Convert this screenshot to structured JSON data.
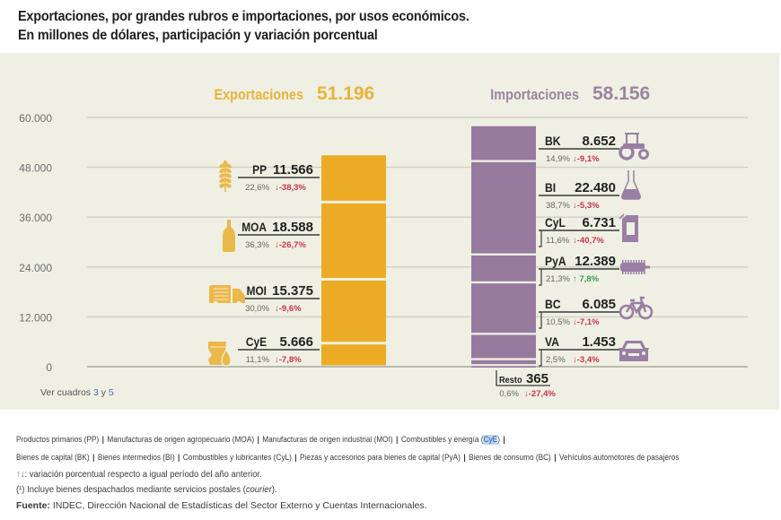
{
  "header": {
    "title_line1": "Exportaciones, por grandes rubros e importaciones, por usos económicos.",
    "title_line2": "En millones de dólares, participación y variación porcentual"
  },
  "colors": {
    "exports": "#ebab25",
    "imports": "#977b9f",
    "icon_exports": "#ebb84a",
    "icon_imports": "#9a7ea3",
    "up": "#3c9a5a",
    "down": "#c9344a",
    "export_title": "#e8b33a",
    "import_title": "#9b84a2",
    "panel_bg": "#eff0e3"
  },
  "chart_data": {
    "type": "bar",
    "stacked": true,
    "ylim": [
      0,
      60000
    ],
    "yticks": [
      0,
      12000,
      24000,
      36000,
      48000,
      60000
    ],
    "ytick_labels": [
      "0",
      "12.000",
      "24.000",
      "36.000",
      "48.000",
      "60.000"
    ],
    "grid": true,
    "note": "Ver cuadros",
    "note_refs": [
      "3",
      "5"
    ],
    "note_joiner": "y",
    "categories": [
      "Exportaciones",
      "Importaciones"
    ],
    "totals": [
      51196,
      58156
    ],
    "total_labels": [
      "51.196",
      "58.156"
    ],
    "series": [
      {
        "name": "Exportaciones",
        "segments_bottom_to_top": [
          {
            "code": "CyE",
            "value": 5666,
            "value_label": "5.666",
            "share": "11,1%",
            "change": "-7,8%",
            "direction": "down",
            "icon": "oil-barrel-drop-icon"
          },
          {
            "code": "MOI",
            "value": 15375,
            "value_label": "15.375",
            "share": "30,0%",
            "change": "-9,6%",
            "direction": "down",
            "icon": "truck-icon"
          },
          {
            "code": "MOA",
            "value": 18588,
            "value_label": "18.588",
            "share": "36,3%",
            "change": "-26,7%",
            "direction": "down",
            "icon": "bottle-icon"
          },
          {
            "code": "PP",
            "value": 11566,
            "value_label": "11.566",
            "share": "22,6%",
            "change": "-38,3%",
            "direction": "down",
            "icon": "wheat-icon"
          }
        ]
      },
      {
        "name": "Importaciones",
        "segments_bottom_to_top": [
          {
            "code": "Resto",
            "value": 365,
            "value_label": "365",
            "share": "0,6%",
            "change": "-27,4%",
            "direction": "down",
            "icon": ""
          },
          {
            "code": "VA",
            "value": 1453,
            "value_label": "1.453",
            "share": "2,5%",
            "change": "-3,4%",
            "direction": "down",
            "icon": "car-icon"
          },
          {
            "code": "BC",
            "value": 6085,
            "value_label": "6.085",
            "share": "10,5%",
            "change": "-7,1%",
            "direction": "down",
            "icon": "bicycle-icon"
          },
          {
            "code": "PyA",
            "value": 12389,
            "value_label": "12.389",
            "share": "21,3%",
            "change": "7,8%",
            "direction": "up",
            "icon": "spring-part-icon"
          },
          {
            "code": "CyL",
            "value": 6731,
            "value_label": "6.731",
            "share": "11,6%",
            "change": "-40,7%",
            "direction": "down",
            "icon": "jerrycan-icon"
          },
          {
            "code": "BI",
            "value": 22480,
            "value_label": "22.480",
            "share": "38,7%",
            "change": "-5,3%",
            "direction": "down",
            "icon": "flask-icon"
          },
          {
            "code": "BK",
            "value": 8652,
            "value_label": "8.652",
            "share": "14,9%",
            "change": "-9,1%",
            "direction": "down",
            "icon": "tractor-icon"
          }
        ]
      }
    ]
  },
  "footer": {
    "legend_row1": [
      "Productos primarios (PP)",
      "Manufacturas de origen agropecuario (MOA)",
      "Manufacturas de origen industrial (MOI)",
      "Combustibles y energía"
    ],
    "legend_row1_hl": "CyE",
    "legend_row2": [
      "Bienes de capital (BK)",
      "Bienes intermedios (BI)",
      "Combustibles y lubricantes (CyL)",
      "Piezas y accesorios para bienes de capital (PyA)",
      "Bienes de consumo (BC)",
      "Vehículos automotores de pasajeros"
    ],
    "arrows_up": "↑",
    "arrows_down": "↓",
    "arrows_note": ": variación porcentual respecto a igual período del año anterior.",
    "note_mark": "(¹)",
    "note_text": " Incluye bienes despachados mediante servicios postales (",
    "note_italic": "courier",
    "note_end": ").",
    "source_label": "Fuente:",
    "source_text": " INDEC, Dirección Nacional de Estadísticas del Sector Externo y Cuentas Internacionales."
  }
}
